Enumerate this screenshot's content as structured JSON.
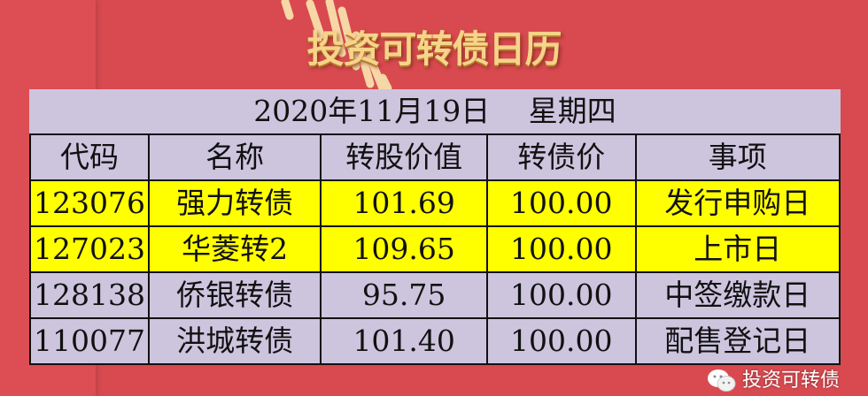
{
  "header": {
    "title": "投资可转债日历"
  },
  "table": {
    "date_line": "2020年11月19日　 星期四",
    "columns": [
      "代码",
      "名称",
      "转股价值",
      "转债价",
      "事项"
    ],
    "rows": [
      {
        "code": "123076",
        "name": "强力转债",
        "conv_value": "101.69",
        "price": "100.00",
        "event": "发行申购日",
        "highlight": true
      },
      {
        "code": "127023",
        "name": "华菱转2",
        "conv_value": "109.65",
        "price": "100.00",
        "event": "上市日",
        "highlight": true
      },
      {
        "code": "128138",
        "name": "侨银转债",
        "conv_value": "95.75",
        "price": "100.00",
        "event": "中签缴款日",
        "highlight": false
      },
      {
        "code": "110077",
        "name": "洪城转债",
        "conv_value": "101.40",
        "price": "100.00",
        "event": "配售登记日",
        "highlight": false
      }
    ]
  },
  "watermark": {
    "icon": "wechat-icon",
    "text": "投资可转债"
  },
  "colors": {
    "background": "#d84a50",
    "table": "#cdc4de",
    "highlight": "#ffff00",
    "title": "#f6d48a"
  }
}
